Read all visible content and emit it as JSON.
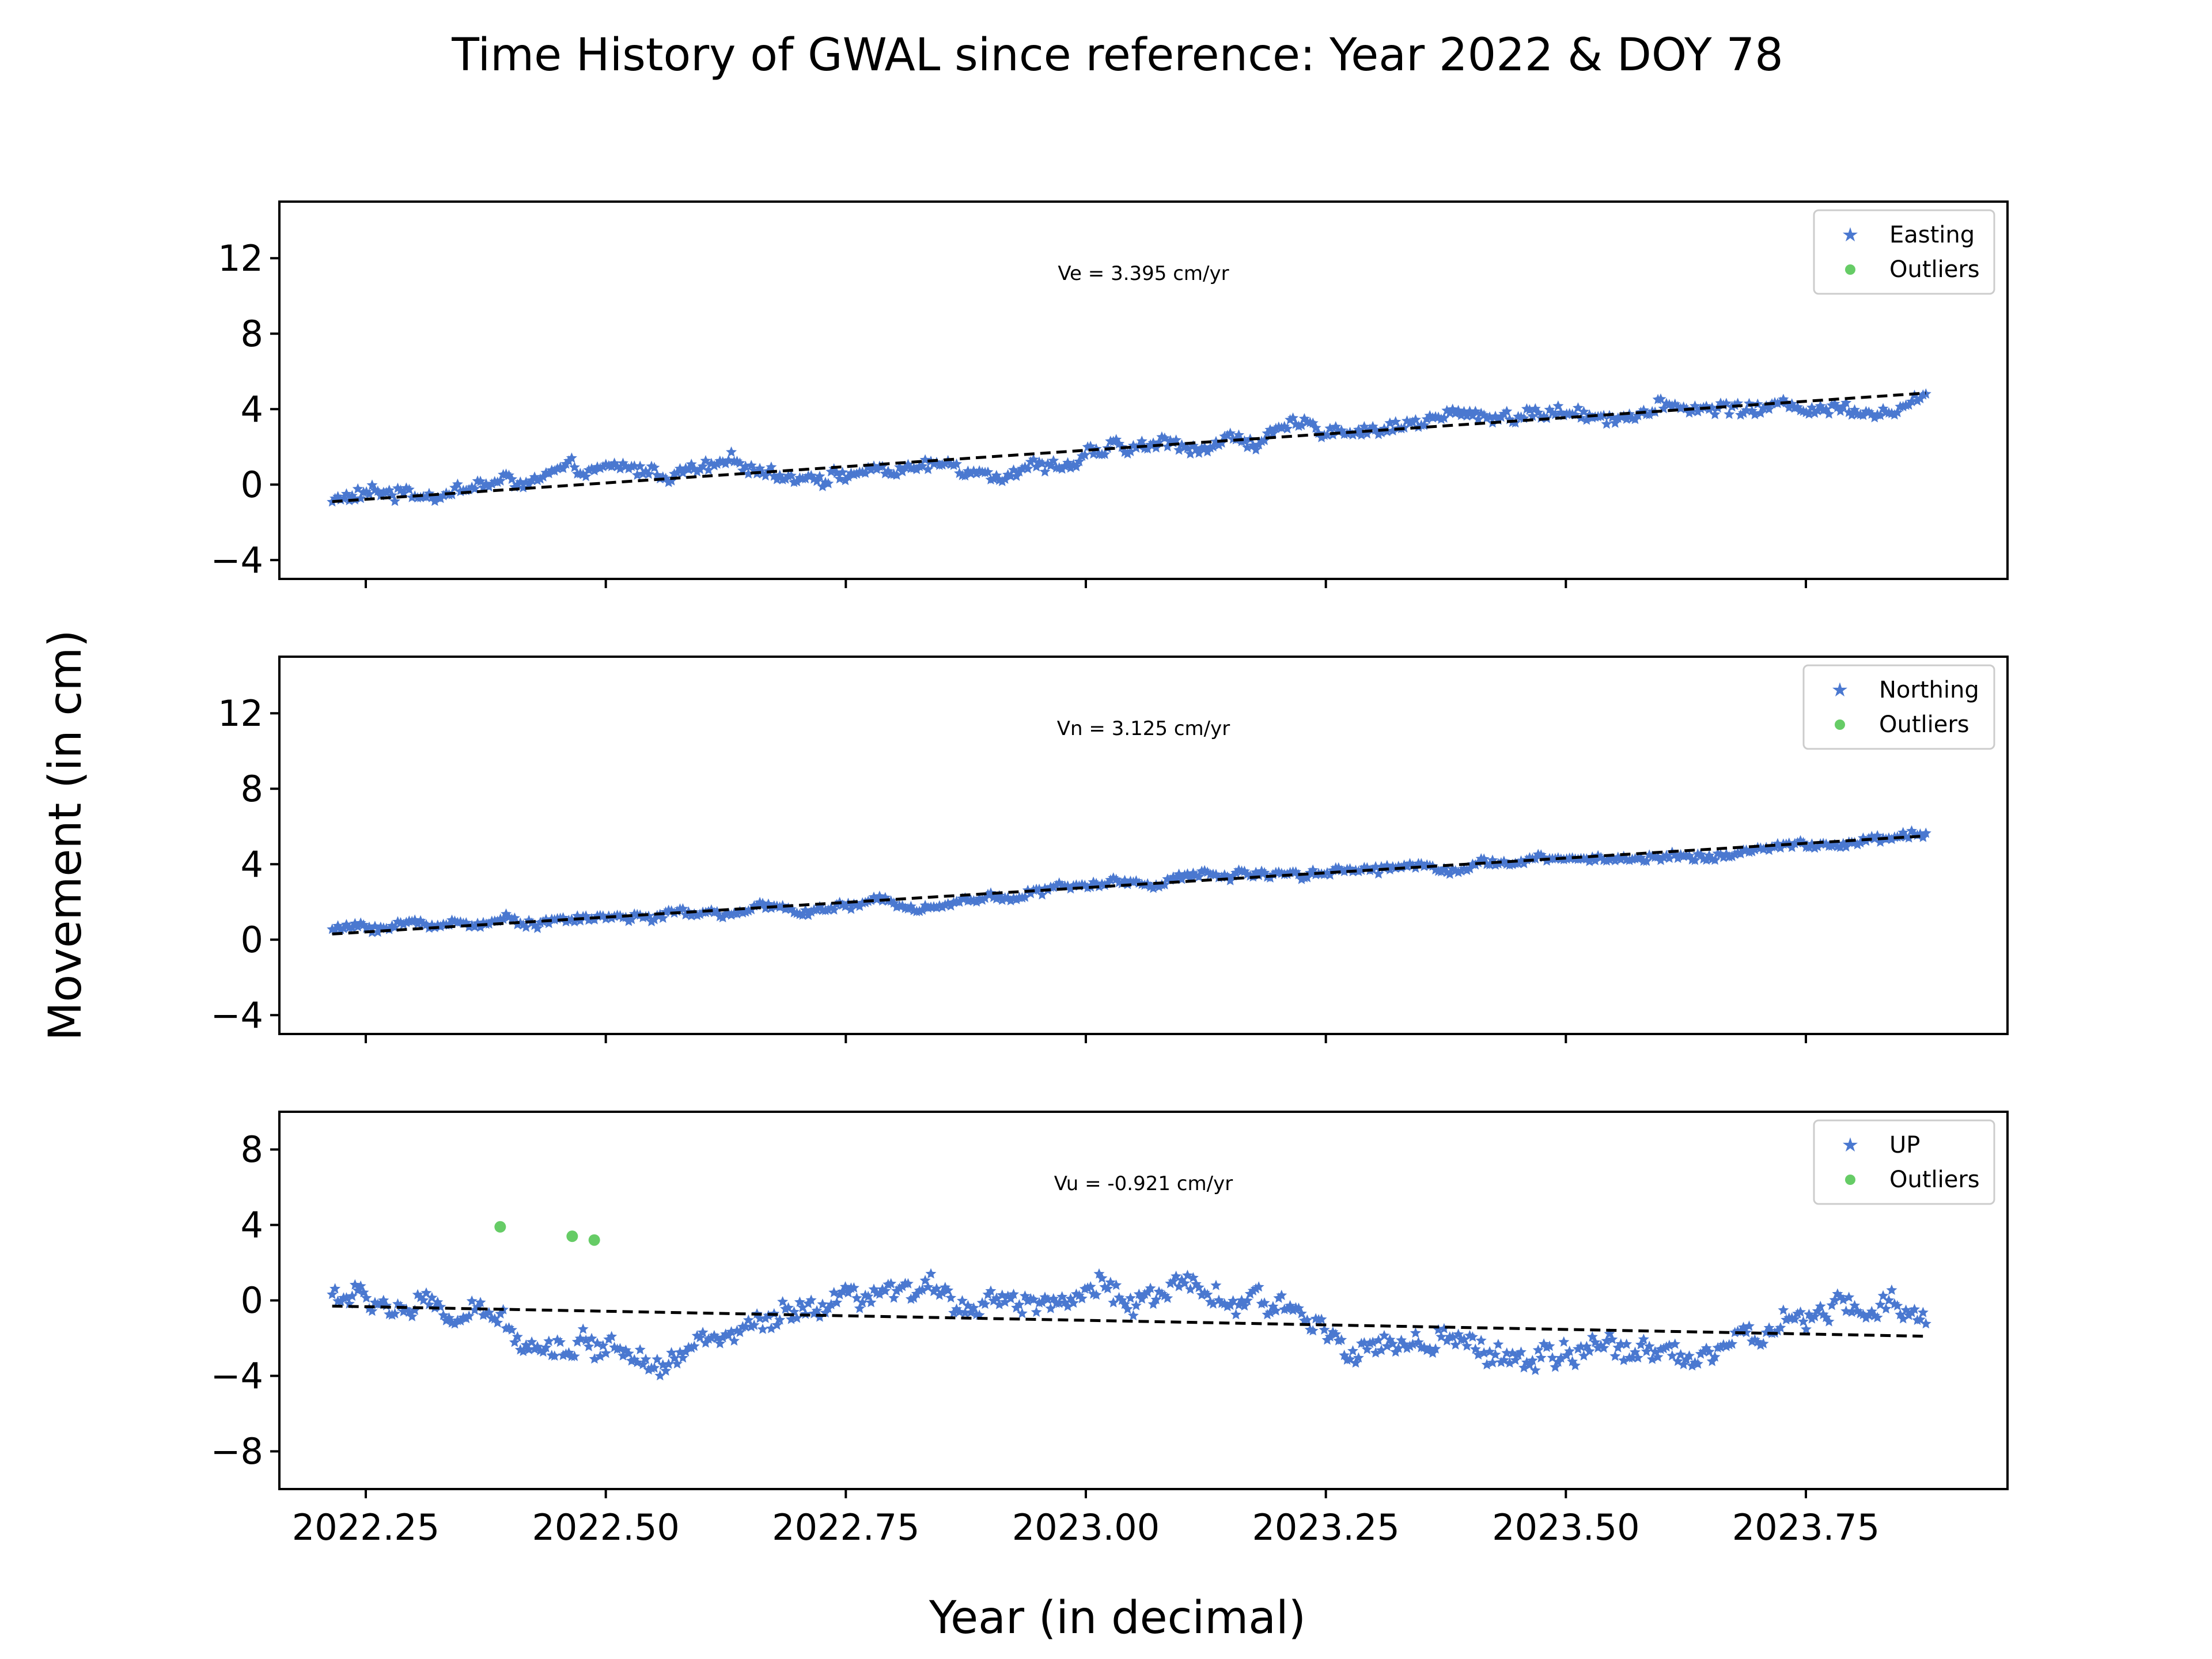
{
  "figure": {
    "title": "Time History of GWAL since reference: Year 2022 & DOY 78",
    "ylabel": "Movement (in cm)",
    "xlabel": "Year (in decimal)"
  },
  "colors": {
    "series": "#4a78d0",
    "outliers": "#66cc66",
    "trend": "#000000"
  },
  "chart_data": [
    {
      "type": "scatter",
      "panel": "easting",
      "series_name": "Easting",
      "outlier_label": "Outliers",
      "annotation": "Ve =  3.395 cm/yr",
      "velocity_cm_per_yr": 3.395,
      "xlim": [
        2022.16,
        2023.96
      ],
      "ylim": [
        -5,
        15
      ],
      "yticks": [
        -4,
        0,
        4,
        8,
        12
      ],
      "xticks": [
        2022.25,
        2022.5,
        2022.75,
        2023.0,
        2023.25,
        2023.5,
        2023.75
      ],
      "x_start": 2022.215,
      "x_end": 2023.875,
      "trend": {
        "start": -0.9,
        "end": 4.85
      },
      "noise_cm": 0.5,
      "wave_amplitude_cm": 0.4,
      "outliers": [],
      "legend_position": "top-right",
      "grid": false
    },
    {
      "type": "scatter",
      "panel": "northing",
      "series_name": "Northing",
      "outlier_label": "Outliers",
      "annotation": "Vn =  3.125 cm/yr",
      "velocity_cm_per_yr": 3.125,
      "xlim": [
        2022.16,
        2023.96
      ],
      "ylim": [
        -5,
        15
      ],
      "yticks": [
        -4,
        0,
        4,
        8,
        12
      ],
      "xticks": [
        2022.25,
        2022.5,
        2022.75,
        2023.0,
        2023.25,
        2023.5,
        2023.75
      ],
      "x_start": 2022.215,
      "x_end": 2023.875,
      "trend": {
        "start": 0.3,
        "end": 5.5
      },
      "noise_cm": 0.3,
      "wave_amplitude_cm": 0.25,
      "outliers": [],
      "legend_position": "top-right",
      "grid": false
    },
    {
      "type": "scatter",
      "panel": "up",
      "series_name": "UP",
      "outlier_label": "Outliers",
      "annotation": "Vu = -0.921 cm/yr",
      "velocity_cm_per_yr": -0.921,
      "xlim": [
        2022.16,
        2023.96
      ],
      "ylim": [
        -10,
        10
      ],
      "yticks": [
        -8,
        -4,
        0,
        4,
        8
      ],
      "xticks": [
        2022.25,
        2022.5,
        2022.75,
        2023.0,
        2023.25,
        2023.5,
        2023.75
      ],
      "xtick_labels": [
        "2022.25",
        "2022.50",
        "2022.75",
        "2023.00",
        "2023.25",
        "2023.50",
        "2023.75"
      ],
      "x_start": 2022.215,
      "x_end": 2023.875,
      "trend": {
        "start": -0.3,
        "end": -1.9
      },
      "noise_cm": 0.9,
      "wave_amplitude_cm": 1.6,
      "outliers": [
        {
          "x": 2022.39,
          "y": 3.9
        },
        {
          "x": 2022.465,
          "y": 3.4
        },
        {
          "x": 2022.488,
          "y": 3.2
        }
      ],
      "legend_position": "top-right",
      "grid": false
    }
  ]
}
